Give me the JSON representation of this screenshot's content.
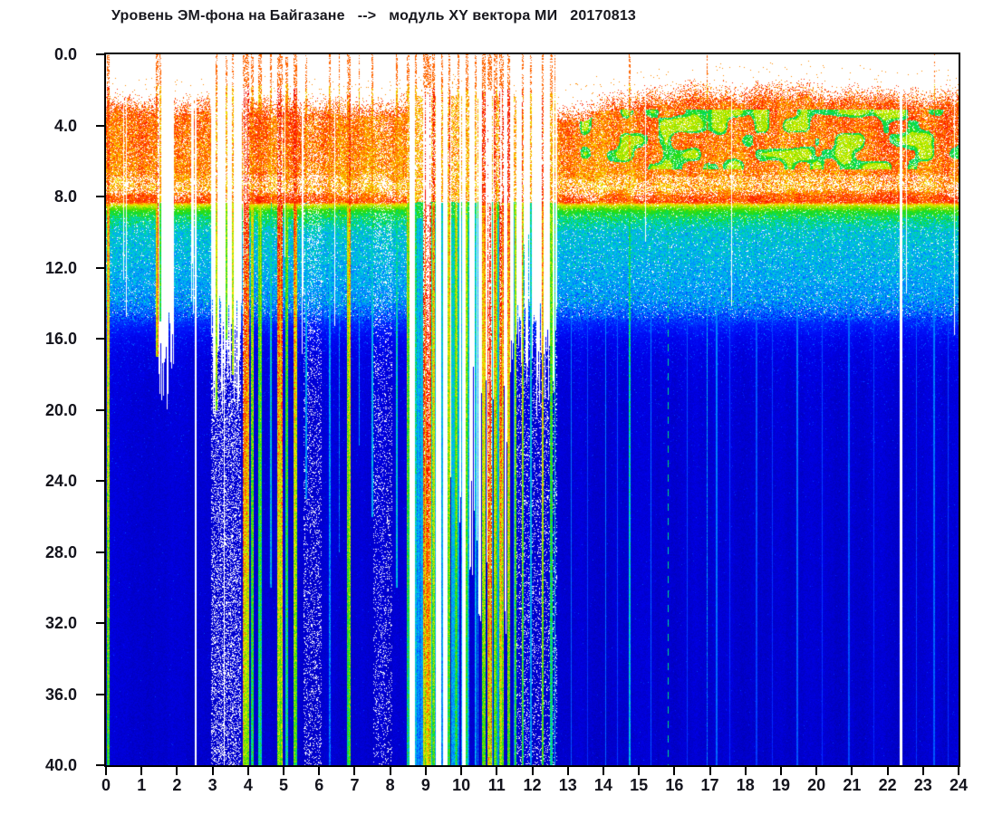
{
  "title": {
    "text": "Уровень ЭМ-фона на Байгазане   -->   модуль XY вектора МИ   20170813"
  },
  "colors": {
    "background": "#ffffff",
    "axis": "#000000",
    "tick_label": "#14141c",
    "title_text": "#17171d",
    "no_data": "#ffffff",
    "saturation": "#ffffff"
  },
  "chart_data": {
    "type": "heatmap",
    "title": "Уровень ЭМ-фона на Байгазане --> модуль XY вектора МИ 20170813",
    "station": "Байгазан",
    "measure": "модуль XY вектора МИ",
    "date": "20170813",
    "xlabel": "",
    "ylabel": "",
    "x_range": [
      0,
      24
    ],
    "y_range": [
      0,
      40
    ],
    "y_axis_inverted": true,
    "grid": false,
    "legend": null,
    "x_ticks": [
      "0",
      "1",
      "2",
      "3",
      "4",
      "5",
      "6",
      "7",
      "8",
      "9",
      "10",
      "11",
      "12",
      "13",
      "14",
      "15",
      "16",
      "17",
      "18",
      "19",
      "20",
      "21",
      "22",
      "23",
      "24"
    ],
    "y_ticks": [
      "0.0",
      "4.0",
      "8.0",
      "12.0",
      "16.0",
      "20.0",
      "24.0",
      "28.0",
      "32.0",
      "36.0",
      "40.0"
    ],
    "colormap_stops": [
      [
        0.0,
        "#00009B"
      ],
      [
        0.07,
        "#0000C3"
      ],
      [
        0.14,
        "#0000E6"
      ],
      [
        0.22,
        "#0013FA"
      ],
      [
        0.3,
        "#0044FF"
      ],
      [
        0.38,
        "#0080FF"
      ],
      [
        0.46,
        "#00B4F8"
      ],
      [
        0.52,
        "#00D2D2"
      ],
      [
        0.58,
        "#00D98C"
      ],
      [
        0.64,
        "#0FDC28"
      ],
      [
        0.7,
        "#46DC00"
      ],
      [
        0.76,
        "#9BE400"
      ],
      [
        0.82,
        "#E6F000"
      ],
      [
        0.87,
        "#FFC800"
      ],
      [
        0.92,
        "#FF6400"
      ],
      [
        0.97,
        "#FF1E00"
      ],
      [
        1.04,
        "#E60000"
      ]
    ],
    "model": {
      "seed": 20170813,
      "depth_profile": [
        [
          0,
          0.93
        ],
        [
          3.2,
          0.94
        ],
        [
          6.6,
          0.92
        ],
        [
          7.5,
          0.9
        ],
        [
          8.0,
          0.95
        ],
        [
          8.3,
          0.96
        ],
        [
          8.5,
          0.8
        ],
        [
          8.8,
          0.68
        ],
        [
          9.3,
          0.58
        ],
        [
          10.0,
          0.5
        ],
        [
          11.5,
          0.47
        ],
        [
          12.8,
          0.44
        ],
        [
          13.8,
          0.4
        ],
        [
          14.5,
          0.33
        ],
        [
          15.2,
          0.24
        ],
        [
          16.0,
          0.17
        ],
        [
          17.0,
          0.135
        ],
        [
          19,
          0.115
        ],
        [
          24,
          0.105
        ],
        [
          32,
          0.1
        ],
        [
          40,
          0.095
        ]
      ],
      "top_sparse_start": [
        [
          0,
          2.1
        ],
        [
          3,
          2.2
        ],
        [
          8.45,
          2.3
        ],
        [
          11.55,
          2.4
        ],
        [
          12.7,
          2.7
        ],
        [
          14,
          2.2
        ],
        [
          15.5,
          1.7
        ],
        [
          16.5,
          1.35
        ],
        [
          18,
          1.5
        ],
        [
          19,
          1.3
        ],
        [
          21,
          1.55
        ],
        [
          22,
          1.8
        ],
        [
          23,
          1.6
        ],
        [
          24,
          1.9
        ]
      ],
      "dense_offset": 1.15,
      "white_strip": {
        "center": 7.3,
        "wave": 0.6,
        "half_width": 0.55,
        "dropout": 0.42
      },
      "dropout_red": 0.15,
      "dropout_redline": 0.08,
      "dropout_green": 0.06,
      "dropout_cyan": 0.05,
      "green_mix": {
        "t_strong": [
          15.15,
          24
        ],
        "t_weak": [
          13,
          24
        ],
        "d": [
          3.1,
          6.45
        ],
        "th_strong": 0.56,
        "th_weak": 0.63
      },
      "anomaly": {
        "from": 8.45,
        "to": 11.55,
        "line_th": 0.47,
        "top_start": 2.3,
        "white_zones": [
          [
            8.45,
            8.68
          ],
          [
            9.28,
            9.6
          ],
          [
            10.0,
            10.12
          ]
        ]
      },
      "sparse_zones": [
        {
          "from": 2.95,
          "to": 3.78,
          "w": 0.5
        },
        {
          "from": 5.55,
          "to": 6.05,
          "w": 0.28
        },
        {
          "from": 7.5,
          "to": 8.05,
          "w": 0.25
        },
        {
          "from": 11.55,
          "to": 12.7,
          "w": 0.25
        }
      ],
      "full_gaps": [
        {
          "h": 2.52,
          "w": 0.055
        },
        {
          "h": 3.32,
          "w": 0.04
        },
        {
          "h": 22.37,
          "w": 0.06
        }
      ],
      "partial_gaps": [
        {
          "h": 15.18,
          "w": 0.035,
          "top": 0,
          "bot": 10.5
        }
      ],
      "bursts": [
        {
          "h": 0.05,
          "w": 0.05,
          "s": 0.85,
          "bot": 40
        },
        {
          "h": 1.43,
          "w": 0.05,
          "s": 0.92,
          "bot": 17
        },
        {
          "h": 1.52,
          "w": 0.03,
          "s": 0.7,
          "bot": 15
        },
        {
          "h": 3.1,
          "w": 0.03,
          "s": 0.9,
          "bot": 20
        },
        {
          "h": 3.38,
          "w": 0.02,
          "s": 0.8,
          "bot": 16
        },
        {
          "h": 3.55,
          "w": 0.03,
          "s": 0.8,
          "bot": 18
        },
        {
          "h": 3.93,
          "w": 0.1,
          "s": 1.08,
          "bot": 40
        },
        {
          "h": 4.1,
          "w": 0.05,
          "s": 0.9,
          "bot": 40
        },
        {
          "h": 4.32,
          "w": 0.05,
          "s": 0.82,
          "bot": 40
        },
        {
          "h": 4.62,
          "w": 0.035,
          "s": 0.6,
          "bot": 30
        },
        {
          "h": 4.88,
          "w": 0.08,
          "s": 0.97,
          "bot": 40
        },
        {
          "h": 5.08,
          "w": 0.045,
          "s": 0.75,
          "bot": 40
        },
        {
          "h": 5.32,
          "w": 0.07,
          "s": 0.92,
          "bot": 40
        },
        {
          "h": 5.62,
          "w": 0.03,
          "s": 0.55,
          "bot": 25
        },
        {
          "h": 6.28,
          "w": 0.04,
          "s": 0.5,
          "bot": 40
        },
        {
          "h": 6.55,
          "w": 0.03,
          "s": 0.45,
          "bot": 28
        },
        {
          "h": 6.82,
          "w": 0.06,
          "s": 0.9,
          "bot": 40
        },
        {
          "h": 7.12,
          "w": 0.03,
          "s": 0.5,
          "bot": 22
        },
        {
          "h": 7.48,
          "w": 0.03,
          "s": 0.48,
          "bot": 26
        },
        {
          "h": 8.18,
          "w": 0.03,
          "s": 0.55,
          "bot": 30
        },
        {
          "h": 8.5,
          "w": 0.04,
          "s": 0.8,
          "bot": 40
        },
        {
          "h": 8.72,
          "w": 0.03,
          "s": 0.6,
          "bot": 40
        },
        {
          "h": 8.95,
          "w": 0.05,
          "s": 1.05,
          "bot": 40
        },
        {
          "h": 9.07,
          "w": 0.09,
          "s": 1.12,
          "bot": 40
        },
        {
          "h": 9.2,
          "w": 0.04,
          "s": 0.92,
          "bot": 40
        },
        {
          "h": 9.45,
          "w": 0.03,
          "s": 0.6,
          "bot": 40
        },
        {
          "h": 9.65,
          "w": 0.04,
          "s": 0.85,
          "bot": 40
        },
        {
          "h": 9.9,
          "w": 0.03,
          "s": 0.55,
          "bot": 40
        },
        {
          "h": 10.15,
          "w": 0.035,
          "s": 0.65,
          "bot": 40
        },
        {
          "h": 10.4,
          "w": 0.03,
          "s": 0.6,
          "bot": 40
        },
        {
          "h": 10.62,
          "w": 0.05,
          "s": 0.95,
          "bot": 40
        },
        {
          "h": 10.78,
          "w": 0.07,
          "s": 1.1,
          "bot": 40
        },
        {
          "h": 10.95,
          "w": 0.05,
          "s": 0.92,
          "bot": 40
        },
        {
          "h": 11.12,
          "w": 0.06,
          "s": 1.02,
          "bot": 40
        },
        {
          "h": 11.32,
          "w": 0.05,
          "s": 0.88,
          "bot": 40
        },
        {
          "h": 11.72,
          "w": 0.04,
          "s": 0.85,
          "bot": 40
        },
        {
          "h": 11.95,
          "w": 0.03,
          "s": 0.6,
          "bot": 40
        },
        {
          "h": 12.28,
          "w": 0.04,
          "s": 0.88,
          "bot": 40
        },
        {
          "h": 12.52,
          "w": 0.035,
          "s": 0.75,
          "bot": 40
        },
        {
          "h": 12.62,
          "w": 0.025,
          "s": 0.6,
          "bot": 40
        },
        {
          "h": 14.73,
          "w": 0.045,
          "s": 0.6,
          "bot": 40
        },
        {
          "h": 16.9,
          "w": 0.02,
          "s": 0.45,
          "bot": 40
        },
        {
          "h": 23.32,
          "w": 0.02,
          "s": 0.42,
          "bot": 40
        }
      ],
      "faint_lines": [
        13.08,
        13.55,
        14.05,
        14.38,
        15.32,
        16.35,
        17.18,
        17.55,
        18.3,
        18.75,
        19.45,
        20.15,
        20.9,
        21.6,
        22.8,
        23.3,
        23.7
      ],
      "faint_strength": [
        0.4,
        0.34,
        0.42,
        0.36,
        0.4,
        0.35,
        0.42,
        0.34,
        0.36,
        0.33,
        0.4,
        0.34,
        0.38,
        0.33,
        0.35,
        0.4,
        0.34
      ],
      "dashed_line": {
        "h": 15.82,
        "s": 0.58,
        "dash": 8
      },
      "deep_speckle": {
        "start": 13.5,
        "p0": 0.12,
        "decay": 3.5,
        "floor": 0.004,
        "bump": 0.18
      }
    }
  }
}
